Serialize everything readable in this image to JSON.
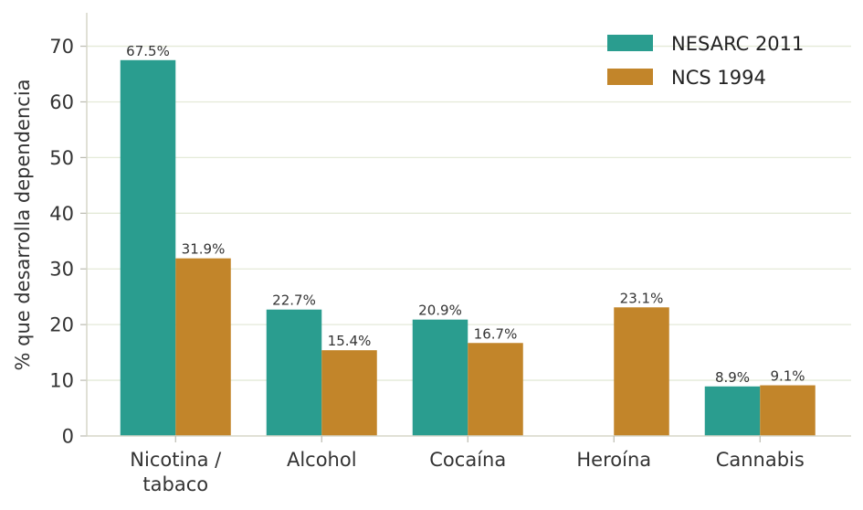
{
  "chart_data": {
    "type": "bar",
    "categories": [
      [
        "Nicotina /",
        "tabaco"
      ],
      [
        "Alcohol"
      ],
      [
        "Cocaína"
      ],
      [
        "Heroína"
      ],
      [
        "Cannabis"
      ]
    ],
    "series": [
      {
        "name": "NESARC 2011",
        "color": "#2a9d8f",
        "values": [
          67.5,
          22.7,
          20.9,
          null,
          8.9
        ],
        "labels": [
          "67.5%",
          "22.7%",
          "20.9%",
          "",
          "8.9%"
        ]
      },
      {
        "name": "NCS 1994",
        "color": "#c2852a",
        "values": [
          31.9,
          15.4,
          16.7,
          23.1,
          9.1
        ],
        "labels": [
          "31.9%",
          "15.4%",
          "16.7%",
          "23.1%",
          "9.1%"
        ]
      }
    ],
    "xlabel": "",
    "ylabel": "% que desarrolla dependencia",
    "ylim": [
      0,
      76
    ],
    "yticks": [
      0,
      10,
      20,
      30,
      40,
      50,
      60,
      70
    ],
    "grid": true,
    "legend": "top-right"
  }
}
